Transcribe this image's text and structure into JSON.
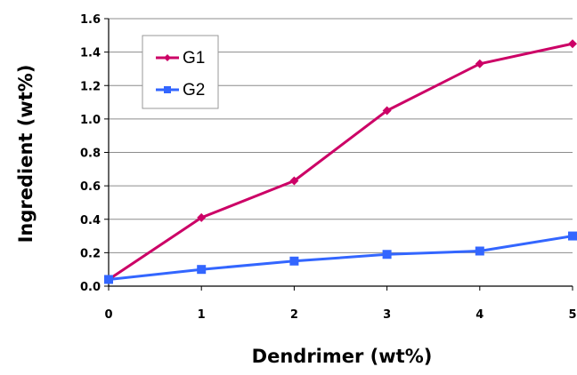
{
  "chart_data": {
    "type": "line",
    "title": "",
    "xlabel": "Dendrimer (wt%)",
    "ylabel": "Ingredient  (wt%)",
    "x": [
      0,
      1,
      2,
      3,
      4,
      5
    ],
    "x_ticks": [
      "0",
      "1",
      "2",
      "3",
      "4",
      "5"
    ],
    "y_ticks": [
      "0.0",
      "0.2",
      "0.4",
      "0.6",
      "0.8",
      "1.0",
      "1.2",
      "1.4",
      "1.6"
    ],
    "xlim": [
      0,
      5
    ],
    "ylim": [
      0,
      1.6
    ],
    "grid": "horizontal",
    "legend_position": "top-left",
    "series": [
      {
        "name": "G1",
        "color": "#CC0066",
        "marker": "diamond",
        "values": [
          0.04,
          0.41,
          0.63,
          1.05,
          1.33,
          1.45
        ]
      },
      {
        "name": "G2",
        "color": "#3366FF",
        "marker": "square",
        "values": [
          0.04,
          0.1,
          0.15,
          0.19,
          0.21,
          0.3
        ]
      }
    ]
  }
}
